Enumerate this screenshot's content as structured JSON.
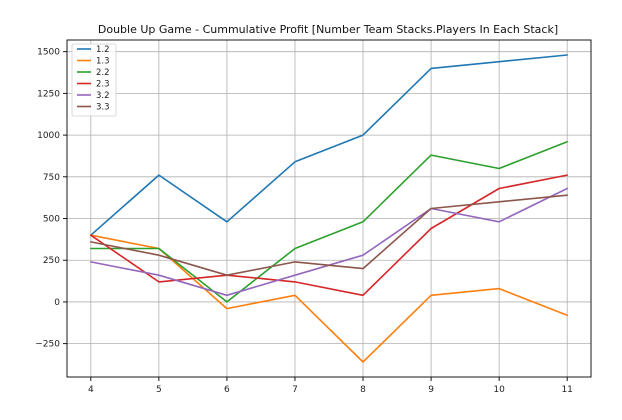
{
  "chart_data": {
    "type": "line",
    "title": "Double Up Game - Cummulative Profit [Number Team Stacks.Players In Each Stack]",
    "xlabel": "",
    "ylabel": "",
    "x": [
      4,
      5,
      6,
      7,
      8,
      9,
      10,
      11
    ],
    "xlim": [
      3.65,
      11.35
    ],
    "ylim": [
      -450,
      1570
    ],
    "yticks": [
      -250,
      0,
      250,
      500,
      750,
      1000,
      1250,
      1500
    ],
    "ytick_labels": [
      "−250",
      "0",
      "250",
      "500",
      "750",
      "1000",
      "1250",
      "1500"
    ],
    "xticks": [
      4,
      5,
      6,
      7,
      8,
      9,
      10,
      11
    ],
    "xtick_labels": [
      "4",
      "5",
      "6",
      "7",
      "8",
      "9",
      "10",
      "11"
    ],
    "grid": true,
    "legend_position": "top-left",
    "series": [
      {
        "name": "1.2",
        "color": "#1f77b4",
        "values": [
          400,
          760,
          480,
          840,
          1000,
          1400,
          1440,
          1480
        ]
      },
      {
        "name": "1.3",
        "color": "#ff7f0e",
        "values": [
          400,
          320,
          -40,
          40,
          -360,
          40,
          80,
          -80
        ]
      },
      {
        "name": "2.2",
        "color": "#2ca02c",
        "values": [
          320,
          320,
          0,
          320,
          480,
          880,
          800,
          960
        ]
      },
      {
        "name": "2.3",
        "color": "#d62728",
        "values": [
          400,
          120,
          160,
          120,
          40,
          440,
          680,
          760
        ]
      },
      {
        "name": "3.2",
        "color": "#9467bd",
        "values": [
          240,
          160,
          40,
          160,
          280,
          560,
          480,
          680
        ]
      },
      {
        "name": "3.3",
        "color": "#8c564b",
        "values": [
          360,
          280,
          160,
          240,
          200,
          560,
          600,
          640
        ]
      }
    ]
  }
}
